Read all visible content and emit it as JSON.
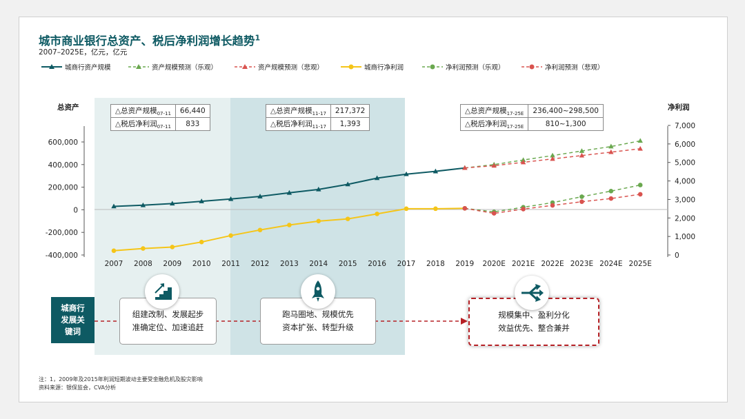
{
  "title": {
    "text": "城市商业银行总资产、税后净利润增长趋势",
    "sup": "1"
  },
  "subtitle": "2007–2025E，亿元，亿元",
  "colors": {
    "teal": "#0e5a63",
    "green": "#6aa84f",
    "red": "#d9534f",
    "yellow": "#f5c518"
  },
  "legend": [
    {
      "label": "城商行资产规模",
      "color": "#0e5a63",
      "marker": "triangle",
      "dash": false
    },
    {
      "label": "资产规模预测（乐观）",
      "color": "#6aa84f",
      "marker": "triangle",
      "dash": true
    },
    {
      "label": "资产规模预测（悲观）",
      "color": "#d9534f",
      "marker": "triangle",
      "dash": true
    },
    {
      "label": "城商行净利润",
      "color": "#f5c518",
      "marker": "circle",
      "dash": false
    },
    {
      "label": "净利润预测（乐观）",
      "color": "#6aa84f",
      "marker": "circle",
      "dash": true
    },
    {
      "label": "净利润预测（悲观）",
      "color": "#d9534f",
      "marker": "circle",
      "dash": true
    }
  ],
  "chart_data": {
    "type": "line",
    "categories": [
      "2007",
      "2008",
      "2009",
      "2010",
      "2011",
      "2012",
      "2013",
      "2014",
      "2015",
      "2016",
      "2017",
      "2018",
      "2019",
      "2020E",
      "2021E",
      "2022E",
      "2023E",
      "2024E",
      "2025E"
    ],
    "left_axis": {
      "title": "总资产",
      "ticks": [
        "600,000",
        "400,000",
        "200,000",
        "0",
        "-200,000",
        "-400,000"
      ],
      "ylim": [
        -400000,
        600000
      ]
    },
    "right_axis": {
      "title": "净利润",
      "ticks": [
        "7,000",
        "6,000",
        "5,000",
        "4,000",
        "3,000",
        "2,000",
        "1,000",
        "0"
      ],
      "ylim": [
        0,
        7000
      ]
    },
    "series": [
      {
        "name": "城商行资产规模",
        "axis": "left",
        "color": "#0e5a63",
        "marker": "triangle",
        "dash": false,
        "values": [
          30000,
          40000,
          55000,
          75000,
          95000,
          118000,
          150000,
          180000,
          225000,
          280000,
          315000,
          340000,
          370000,
          null,
          null,
          null,
          null,
          null,
          null
        ]
      },
      {
        "name": "资产规模预测（乐观）",
        "axis": "left",
        "color": "#6aa84f",
        "marker": "triangle",
        "dash": true,
        "values": [
          null,
          null,
          null,
          null,
          null,
          null,
          null,
          null,
          null,
          null,
          null,
          null,
          370000,
          400000,
          440000,
          480000,
          520000,
          560000,
          610000
        ]
      },
      {
        "name": "资产规模预测（悲观）",
        "axis": "left",
        "color": "#d9534f",
        "marker": "triangle",
        "dash": true,
        "values": [
          null,
          null,
          null,
          null,
          null,
          null,
          null,
          null,
          null,
          null,
          null,
          null,
          370000,
          390000,
          420000,
          450000,
          480000,
          510000,
          540000
        ]
      },
      {
        "name": "城商行净利润",
        "axis": "right",
        "color": "#f5c518",
        "marker": "circle",
        "dash": false,
        "values": [
          230,
          350,
          430,
          700,
          1050,
          1350,
          1620,
          1830,
          1950,
          2220,
          2500,
          2500,
          2520,
          null,
          null,
          null,
          null,
          null,
          null
        ]
      },
      {
        "name": "净利润预测（乐观）",
        "axis": "right",
        "color": "#6aa84f",
        "marker": "circle",
        "dash": true,
        "values": [
          null,
          null,
          null,
          null,
          null,
          null,
          null,
          null,
          null,
          null,
          null,
          null,
          2520,
          2330,
          2580,
          2830,
          3150,
          3450,
          3780
        ]
      },
      {
        "name": "净利润预测（悲观）",
        "axis": "right",
        "color": "#d9534f",
        "marker": "circle",
        "dash": true,
        "values": [
          null,
          null,
          null,
          null,
          null,
          null,
          null,
          null,
          null,
          null,
          null,
          null,
          2520,
          2250,
          2480,
          2680,
          2880,
          3050,
          3280
        ]
      }
    ]
  },
  "tables": [
    {
      "rows": [
        {
          "label": "△总资产规模",
          "sub": "07-11",
          "value": "66,440"
        },
        {
          "label": "△税后净利润",
          "sub": "07-11",
          "value": "833"
        }
      ]
    },
    {
      "rows": [
        {
          "label": "△总资产规模",
          "sub": "11-17",
          "value": "217,372"
        },
        {
          "label": "△税后净利润",
          "sub": "11-17",
          "value": "1,393"
        }
      ]
    },
    {
      "rows": [
        {
          "label": "△总资产规模",
          "sub": "17-25E",
          "value": "236,400~298,500"
        },
        {
          "label": "△税后净利润",
          "sub": "17-25E",
          "value": "810~1,300"
        }
      ]
    }
  ],
  "keywords": {
    "label": [
      "城商行",
      "发展关",
      "键词"
    ],
    "stage1": [
      "组建改制、发展起步",
      "准确定位、加速追赶"
    ],
    "stage2": [
      "跑马圈地、规模优先",
      "资本扩张、转型升级"
    ],
    "stage3": [
      "规模集中、盈利分化",
      "效益优先、整合兼并"
    ]
  },
  "icons": [
    "stairs-up-icon",
    "rocket-icon",
    "split-arrows-icon"
  ],
  "notes": [
    "注：1，2009年及2015年利润短期波动主要受金融危机及股灾影响",
    "资料来源：银保监会，CVA分析"
  ]
}
